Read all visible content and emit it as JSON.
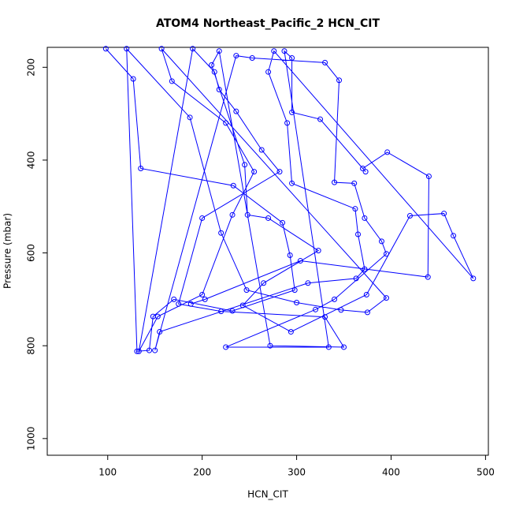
{
  "chart_data": {
    "type": "line",
    "title": "ATOM4 Northeast_Pacific_2 HCN_CIT",
    "x_label": "HCN_CIT",
    "y_label": "Pressure (mbar)",
    "color": "#0000ff",
    "x": [
      98,
      127,
      135,
      233,
      285,
      293,
      298,
      232,
      170,
      148,
      144,
      131,
      120,
      187,
      220,
      247,
      300,
      347,
      375,
      395,
      157,
      168,
      225,
      255,
      232,
      200,
      153,
      133,
      190,
      213,
      218,
      236,
      263,
      282,
      200,
      175,
      220,
      330,
      350,
      272,
      218,
      210,
      245,
      248,
      270,
      323,
      265,
      243,
      294,
      374,
      420,
      456,
      466,
      487,
      276,
      270,
      290,
      295,
      362,
      365,
      372,
      363,
      312,
      155,
      150,
      236,
      253,
      330,
      345,
      340,
      361,
      372,
      390,
      395,
      340,
      320,
      225,
      334,
      287,
      295,
      295,
      325,
      373,
      370,
      396,
      440,
      439,
      304,
      203,
      188
    ],
    "values": [
      160,
      225,
      418,
      455,
      535,
      605,
      680,
      725,
      700,
      737,
      810,
      812,
      160,
      308,
      557,
      680,
      707,
      723,
      728,
      697,
      160,
      230,
      320,
      425,
      518,
      690,
      737,
      812,
      160,
      210,
      248,
      295,
      378,
      425,
      525,
      710,
      726,
      738,
      803,
      800,
      165,
      195,
      410,
      518,
      525,
      595,
      665,
      713,
      770,
      690,
      520,
      515,
      563,
      655,
      165,
      210,
      320,
      450,
      505,
      560,
      635,
      655,
      665,
      770,
      810,
      175,
      180,
      190,
      228,
      448,
      450,
      525,
      575,
      602,
      700,
      722,
      803,
      803,
      165,
      180,
      297,
      312,
      425,
      418,
      383,
      435,
      652,
      617,
      700,
      710
    ],
    "xlim": [
      36,
      503
    ],
    "xticks": [
      100,
      200,
      300,
      400,
      500
    ],
    "ylim": [
      1036,
      157
    ],
    "yticks": [
      200,
      400,
      600,
      800,
      1000
    ]
  }
}
